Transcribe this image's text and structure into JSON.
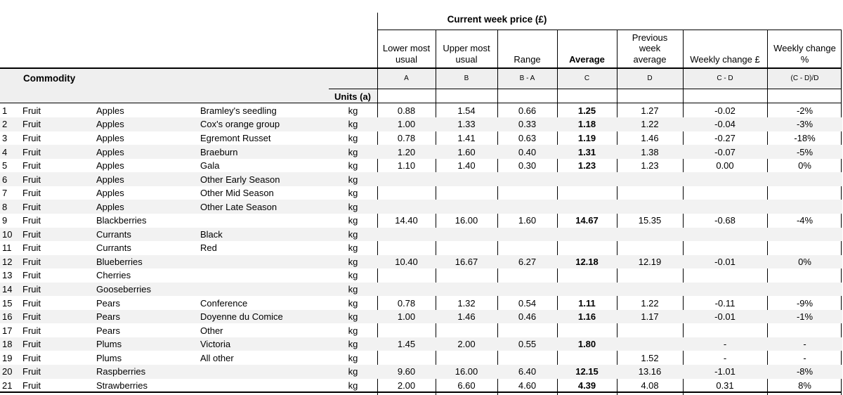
{
  "table": {
    "title": "Current week price (£)",
    "commodity_header": "Commodity",
    "units_header": "Units (a)",
    "columns": [
      {
        "label": "Lower most usual",
        "code": "A"
      },
      {
        "label": "Upper most usual",
        "code": "B"
      },
      {
        "label": "Range",
        "code": "B - A"
      },
      {
        "label": "Average",
        "code": "C"
      },
      {
        "label": "Previous week average",
        "code": "D"
      },
      {
        "label": "Weekly change £",
        "code": "C - D"
      },
      {
        "label": "Weekly change %",
        "code": "(C - D)/D"
      }
    ],
    "rows": [
      {
        "num": "1",
        "group": "Fruit",
        "commodity": "Apples",
        "variety": "Bramley's seedling",
        "units": "kg",
        "lower": "0.88",
        "upper": "1.54",
        "range": "0.66",
        "average": "1.25",
        "prev": "1.27",
        "change": "-0.02",
        "change_pct": "-2%"
      },
      {
        "num": "2",
        "group": "Fruit",
        "commodity": "Apples",
        "variety": "Cox's orange group",
        "units": "kg",
        "lower": "1.00",
        "upper": "1.33",
        "range": "0.33",
        "average": "1.18",
        "prev": "1.22",
        "change": "-0.04",
        "change_pct": "-3%"
      },
      {
        "num": "3",
        "group": "Fruit",
        "commodity": "Apples",
        "variety": "Egremont Russet",
        "units": "kg",
        "lower": "0.78",
        "upper": "1.41",
        "range": "0.63",
        "average": "1.19",
        "prev": "1.46",
        "change": "-0.27",
        "change_pct": "-18%"
      },
      {
        "num": "4",
        "group": "Fruit",
        "commodity": "Apples",
        "variety": "Braeburn",
        "units": "kg",
        "lower": "1.20",
        "upper": "1.60",
        "range": "0.40",
        "average": "1.31",
        "prev": "1.38",
        "change": "-0.07",
        "change_pct": "-5%"
      },
      {
        "num": "5",
        "group": "Fruit",
        "commodity": "Apples",
        "variety": "Gala",
        "units": "kg",
        "lower": "1.10",
        "upper": "1.40",
        "range": "0.30",
        "average": "1.23",
        "prev": "1.23",
        "change": "0.00",
        "change_pct": "0%"
      },
      {
        "num": "6",
        "group": "Fruit",
        "commodity": "Apples",
        "variety": "Other Early Season",
        "units": "kg",
        "lower": "",
        "upper": "",
        "range": "",
        "average": "",
        "prev": "",
        "change": "",
        "change_pct": ""
      },
      {
        "num": "7",
        "group": "Fruit",
        "commodity": "Apples",
        "variety": "Other Mid Season",
        "units": "kg",
        "lower": "",
        "upper": "",
        "range": "",
        "average": "",
        "prev": "",
        "change": "",
        "change_pct": ""
      },
      {
        "num": "8",
        "group": "Fruit",
        "commodity": "Apples",
        "variety": "Other Late Season",
        "units": "kg",
        "lower": "",
        "upper": "",
        "range": "",
        "average": "",
        "prev": "",
        "change": "",
        "change_pct": ""
      },
      {
        "num": "9",
        "group": "Fruit",
        "commodity": "Blackberries",
        "variety": "",
        "units": "kg",
        "lower": "14.40",
        "upper": "16.00",
        "range": "1.60",
        "average": "14.67",
        "prev": "15.35",
        "change": "-0.68",
        "change_pct": "-4%"
      },
      {
        "num": "10",
        "group": "Fruit",
        "commodity": "Currants",
        "variety": "Black",
        "units": "kg",
        "lower": "",
        "upper": "",
        "range": "",
        "average": "",
        "prev": "",
        "change": "",
        "change_pct": ""
      },
      {
        "num": "11",
        "group": "Fruit",
        "commodity": "Currants",
        "variety": "Red",
        "units": "kg",
        "lower": "",
        "upper": "",
        "range": "",
        "average": "",
        "prev": "",
        "change": "",
        "change_pct": ""
      },
      {
        "num": "12",
        "group": "Fruit",
        "commodity": "Blueberries",
        "variety": "",
        "units": "kg",
        "lower": "10.40",
        "upper": "16.67",
        "range": "6.27",
        "average": "12.18",
        "prev": "12.19",
        "change": "-0.01",
        "change_pct": "0%"
      },
      {
        "num": "13",
        "group": "Fruit",
        "commodity": "Cherries",
        "variety": "",
        "units": "kg",
        "lower": "",
        "upper": "",
        "range": "",
        "average": "",
        "prev": "",
        "change": "",
        "change_pct": ""
      },
      {
        "num": "14",
        "group": "Fruit",
        "commodity": "Gooseberries",
        "variety": "",
        "units": "kg",
        "lower": "",
        "upper": "",
        "range": "",
        "average": "",
        "prev": "",
        "change": "",
        "change_pct": ""
      },
      {
        "num": "15",
        "group": "Fruit",
        "commodity": "Pears",
        "variety": "Conference",
        "units": "kg",
        "lower": "0.78",
        "upper": "1.32",
        "range": "0.54",
        "average": "1.11",
        "prev": "1.22",
        "change": "-0.11",
        "change_pct": "-9%"
      },
      {
        "num": "16",
        "group": "Fruit",
        "commodity": "Pears",
        "variety": "Doyenne du Comice",
        "units": "kg",
        "lower": "1.00",
        "upper": "1.46",
        "range": "0.46",
        "average": "1.16",
        "prev": "1.17",
        "change": "-0.01",
        "change_pct": "-1%"
      },
      {
        "num": "17",
        "group": "Fruit",
        "commodity": "Pears",
        "variety": "Other",
        "units": "kg",
        "lower": "",
        "upper": "",
        "range": "",
        "average": "",
        "prev": "",
        "change": "",
        "change_pct": ""
      },
      {
        "num": "18",
        "group": "Fruit",
        "commodity": "Plums",
        "variety": "Victoria",
        "units": "kg",
        "lower": "1.45",
        "upper": "2.00",
        "range": "0.55",
        "average": "1.80",
        "prev": "",
        "change": "-",
        "change_pct": "-"
      },
      {
        "num": "19",
        "group": "Fruit",
        "commodity": "Plums",
        "variety": "All other",
        "units": "kg",
        "lower": "",
        "upper": "",
        "range": "",
        "average": "",
        "prev": "1.52",
        "change": "-",
        "change_pct": "-"
      },
      {
        "num": "20",
        "group": "Fruit",
        "commodity": "Raspberries",
        "variety": "",
        "units": "kg",
        "lower": "9.60",
        "upper": "16.00",
        "range": "6.40",
        "average": "12.15",
        "prev": "13.16",
        "change": "-1.01",
        "change_pct": "-8%"
      },
      {
        "num": "21",
        "group": "Fruit",
        "commodity": "Strawberries",
        "variety": "",
        "units": "kg",
        "lower": "2.00",
        "upper": "6.60",
        "range": "4.60",
        "average": "4.39",
        "prev": "4.08",
        "change": "0.31",
        "change_pct": "8%"
      }
    ]
  }
}
